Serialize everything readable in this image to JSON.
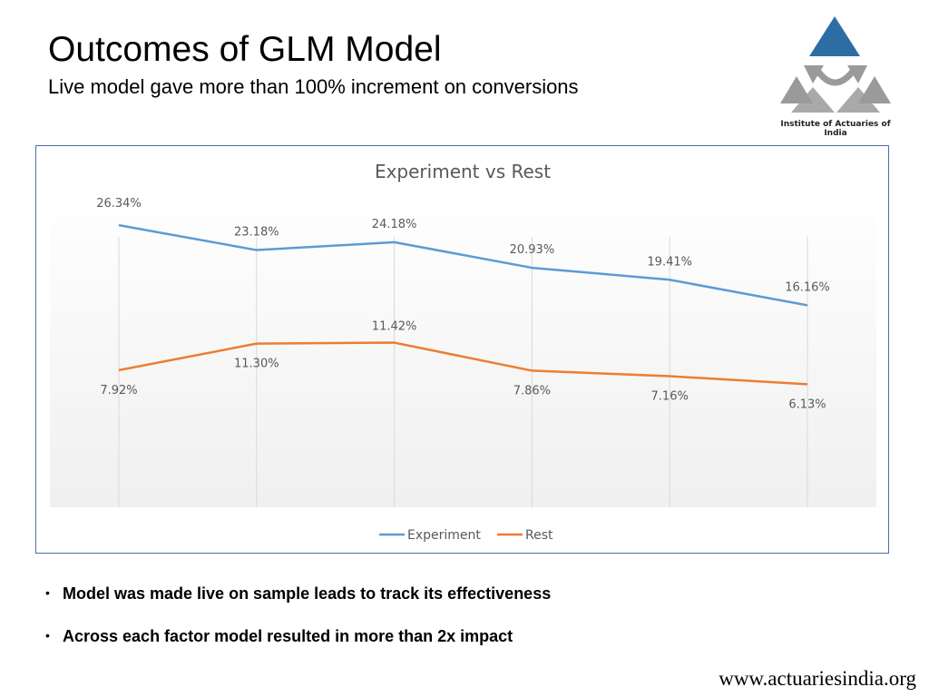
{
  "slide": {
    "title": "Outcomes of GLM Model",
    "subtitle": "Live model gave more than 100% increment on conversions",
    "logo_text": "Institute of Actuaries of India",
    "bullets": [
      "Model was made live on sample leads to track its effectiveness",
      "Across each factor model resulted in more than 2x impact"
    ],
    "footer_url": "www.actuariesindia.org"
  },
  "colors": {
    "experiment": "#5b9bd5",
    "rest": "#ed7d31",
    "chart_title": "#595959",
    "label": "#595959",
    "logo_blue": "#2e6da4",
    "logo_gray": "#9a9a9a"
  },
  "chart_data": {
    "type": "line",
    "title": "Experiment vs Rest",
    "categories": [
      "",
      "",
      "",
      "",
      "",
      ""
    ],
    "series": [
      {
        "name": "Experiment",
        "values": [
          26.34,
          23.18,
          24.18,
          20.93,
          19.41,
          16.16
        ],
        "labels": [
          "26.34%",
          "23.18%",
          "24.18%",
          "20.93%",
          "19.41%",
          "16.16%"
        ]
      },
      {
        "name": "Rest",
        "values": [
          7.92,
          11.3,
          11.42,
          7.86,
          7.16,
          6.13
        ],
        "labels": [
          "7.92%",
          "11.30%",
          "11.42%",
          "7.86%",
          "7.16%",
          "6.13%"
        ]
      }
    ],
    "ylim": [
      0,
      30
    ],
    "grid": "vertical",
    "legend": "bottom"
  }
}
